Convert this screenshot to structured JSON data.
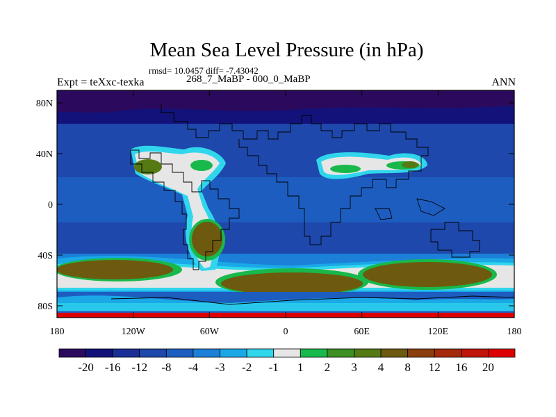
{
  "title": "Mean Sea Level Pressure (in hPa)",
  "stats": "rmsd= 10.0457 diff= -7.43042",
  "subtitle": "268_7_MaBP - 000_0_MaBP",
  "experiment": "Expt = teXxc-texka",
  "season": "ANN",
  "lon_ticks": [
    "180",
    "120W",
    "60W",
    "0",
    "60E",
    "120E",
    "180"
  ],
  "lat_ticks": [
    "80N",
    "40N",
    "0",
    "40S",
    "80S"
  ],
  "colorbar": {
    "colors": [
      "#2b0a5e",
      "#12127a",
      "#1a2f96",
      "#1e48ab",
      "#1d5dc0",
      "#1c80d8",
      "#1aa8e6",
      "#30d6ec",
      "#e6e6e6",
      "#19b84a",
      "#3c8f22",
      "#557a13",
      "#6d5a0e",
      "#8a3e0e",
      "#a32a0b",
      "#c0140a",
      "#de0000"
    ],
    "labels": [
      "-20",
      "-16",
      "-12",
      "-8",
      "-4",
      "-3",
      "-2",
      "-1",
      "1",
      "2",
      "3",
      "4",
      "8",
      "12",
      "16",
      "20"
    ]
  },
  "map_regions": [
    {
      "name": "north-pacific-high",
      "fill": "#1d5dc0"
    },
    {
      "name": "south-pacific-high",
      "fill": "#6d5a0e"
    },
    {
      "name": "south-atlantic-indian-high",
      "fill": "#6d5a0e"
    },
    {
      "name": "south-indian-high",
      "fill": "#6d5a0e"
    },
    {
      "name": "south-america-high",
      "fill": "#6d5a0e"
    },
    {
      "name": "north-america-high",
      "fill": "#557a13"
    },
    {
      "name": "asia-high",
      "fill": "#19b84a"
    },
    {
      "name": "arctic-low",
      "fill": "#2b0a5e"
    }
  ]
}
